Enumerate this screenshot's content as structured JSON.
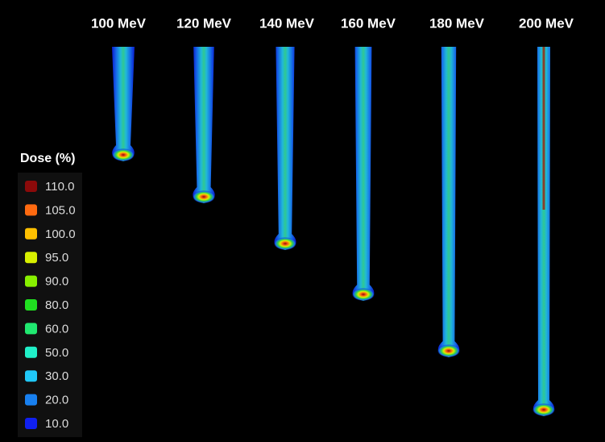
{
  "energy_labels": [
    "100 MeV",
    "120 MeV",
    "140 MeV",
    "160 MeV",
    "180 MeV",
    "200 MeV"
  ],
  "legend": {
    "title": "Dose (%)",
    "items": [
      {
        "label": "110.0",
        "color": "#8b0a0a"
      },
      {
        "label": "105.0",
        "color": "#ff6a10"
      },
      {
        "label": "100.0",
        "color": "#ffc000"
      },
      {
        "label": "95.0",
        "color": "#d8f000"
      },
      {
        "label": "90.0",
        "color": "#88f000"
      },
      {
        "label": "80.0",
        "color": "#20e020"
      },
      {
        "label": "60.0",
        "color": "#20e870"
      },
      {
        "label": "50.0",
        "color": "#20f0c8"
      },
      {
        "label": "30.0",
        "color": "#20c8f8"
      },
      {
        "label": "20.0",
        "color": "#1880f0"
      },
      {
        "label": "10.0",
        "color": "#1020f0"
      }
    ]
  }
}
